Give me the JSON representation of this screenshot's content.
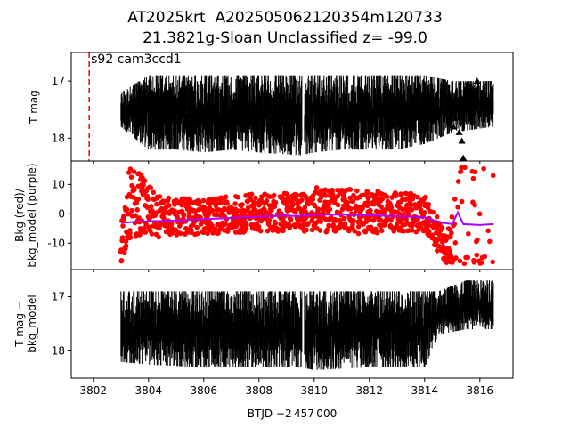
{
  "title_line1": "AT2025krt  A202505062120354m120733",
  "title_line2": "21.3821g-Sloan Unclassified z= -99.0",
  "chart_data": [
    {
      "type": "scatter",
      "panel": "top",
      "ylabel": "T mag",
      "y_inverted": true,
      "ylim": [
        18.4,
        16.5
      ],
      "yticks": [
        17,
        18
      ],
      "annotation": "s92 cam3ccd1",
      "vline_x": 3801.85,
      "vline_color": "#ff0000",
      "series_color": "#000000",
      "band": [
        {
          "x": 3803.0,
          "lo": 17.2,
          "hi": 17.8
        },
        {
          "x": 3804.0,
          "lo": 16.9,
          "hi": 18.2
        },
        {
          "x": 3805.0,
          "lo": 16.9,
          "hi": 18.2
        },
        {
          "x": 3806.0,
          "lo": 16.9,
          "hi": 18.25
        },
        {
          "x": 3807.0,
          "lo": 16.9,
          "hi": 18.2
        },
        {
          "x": 3808.0,
          "lo": 16.9,
          "hi": 18.25
        },
        {
          "x": 3809.5,
          "lo": 16.9,
          "hi": 18.3
        },
        {
          "x": 3810.0,
          "lo": 16.9,
          "hi": 18.25
        },
        {
          "x": 3811.0,
          "lo": 16.9,
          "hi": 18.2
        },
        {
          "x": 3812.0,
          "lo": 16.9,
          "hi": 18.2
        },
        {
          "x": 3813.0,
          "lo": 16.9,
          "hi": 18.2
        },
        {
          "x": 3814.0,
          "lo": 16.9,
          "hi": 18.1
        },
        {
          "x": 3815.0,
          "lo": 17.0,
          "hi": 17.9
        },
        {
          "x": 3816.5,
          "lo": 17.0,
          "hi": 17.8
        }
      ],
      "triangles": [
        {
          "x": 3815.05,
          "y": 17.8
        },
        {
          "x": 3815.25,
          "y": 17.9
        },
        {
          "x": 3815.35,
          "y": 18.05
        },
        {
          "x": 3815.1,
          "y": 17.65
        },
        {
          "x": 3815.4,
          "y": 18.35
        },
        {
          "x": 3815.9,
          "y": 17.0
        },
        {
          "x": 3815.65,
          "y": 17.1
        }
      ]
    },
    {
      "type": "scatter",
      "panel": "middle",
      "ylabel": "Bkg (red)/\nbkg_model (purple)",
      "ylim": [
        -19,
        18
      ],
      "yticks": [
        10,
        0,
        -10
      ],
      "bkg_color": "#ff0000",
      "model_color": "#aa00ff",
      "bkg_band": [
        {
          "x": 3803.0,
          "lo": -17,
          "hi": -3
        },
        {
          "x": 3803.3,
          "lo": -10,
          "hi": 16
        },
        {
          "x": 3803.7,
          "lo": -8,
          "hi": 14
        },
        {
          "x": 3804.3,
          "lo": -8,
          "hi": 6
        },
        {
          "x": 3806.0,
          "lo": -7,
          "hi": 5
        },
        {
          "x": 3808.0,
          "lo": -6,
          "hi": 7
        },
        {
          "x": 3809.5,
          "lo": -6,
          "hi": 7
        },
        {
          "x": 3810.0,
          "lo": -6,
          "hi": 9
        },
        {
          "x": 3812.0,
          "lo": -7,
          "hi": 8
        },
        {
          "x": 3814.0,
          "lo": -6,
          "hi": 7
        },
        {
          "x": 3814.4,
          "lo": -12,
          "hi": 0
        },
        {
          "x": 3814.8,
          "lo": -17,
          "hi": -8
        },
        {
          "x": 3815.3,
          "lo": -17,
          "hi": 17
        },
        {
          "x": 3816.0,
          "lo": -17,
          "hi": 17
        },
        {
          "x": 3816.5,
          "lo": -17,
          "hi": 16
        }
      ],
      "model": [
        {
          "x": 3803.0,
          "y": -3.0
        },
        {
          "x": 3804.0,
          "y": -2.5
        },
        {
          "x": 3805.0,
          "y": -2.3
        },
        {
          "x": 3806.0,
          "y": -1.8
        },
        {
          "x": 3807.0,
          "y": -1.4
        },
        {
          "x": 3808.0,
          "y": -1.0
        },
        {
          "x": 3809.0,
          "y": -0.6
        },
        {
          "x": 3809.5,
          "y": -0.8
        },
        {
          "x": 3810.0,
          "y": -0.3
        },
        {
          "x": 3811.0,
          "y": -0.3
        },
        {
          "x": 3812.0,
          "y": -0.5
        },
        {
          "x": 3813.0,
          "y": -0.8
        },
        {
          "x": 3814.0,
          "y": -1.2
        },
        {
          "x": 3814.6,
          "y": -3.0
        },
        {
          "x": 3815.0,
          "y": -3.5
        },
        {
          "x": 3815.2,
          "y": 0.5
        },
        {
          "x": 3815.4,
          "y": -3.5
        },
        {
          "x": 3816.0,
          "y": -3.8
        },
        {
          "x": 3816.5,
          "y": -3.5
        }
      ]
    },
    {
      "type": "scatter",
      "panel": "bottom",
      "ylabel": "T mag −\nbkg_model",
      "y_inverted": true,
      "ylim": [
        18.5,
        16.5
      ],
      "yticks": [
        17,
        18
      ],
      "series_color": "#000000",
      "band": [
        {
          "x": 3803.0,
          "lo": 16.9,
          "hi": 18.2
        },
        {
          "x": 3804.0,
          "lo": 16.9,
          "hi": 18.25
        },
        {
          "x": 3806.0,
          "lo": 16.9,
          "hi": 18.3
        },
        {
          "x": 3808.0,
          "lo": 16.9,
          "hi": 18.3
        },
        {
          "x": 3809.5,
          "lo": 16.9,
          "hi": 18.3
        },
        {
          "x": 3810.0,
          "lo": 16.9,
          "hi": 18.35
        },
        {
          "x": 3812.0,
          "lo": 16.9,
          "hi": 18.3
        },
        {
          "x": 3814.0,
          "lo": 16.9,
          "hi": 18.3
        },
        {
          "x": 3814.5,
          "lo": 16.9,
          "hi": 17.7
        },
        {
          "x": 3815.5,
          "lo": 16.7,
          "hi": 17.6
        },
        {
          "x": 3816.5,
          "lo": 16.7,
          "hi": 17.6
        }
      ]
    }
  ],
  "x_axis": {
    "label": "BTJD −2 457 000",
    "xlim": [
      3801.2,
      3817.2
    ],
    "ticks": [
      "3802",
      "3804",
      "3806",
      "3808",
      "3810",
      "3812",
      "3814",
      "3816"
    ]
  }
}
